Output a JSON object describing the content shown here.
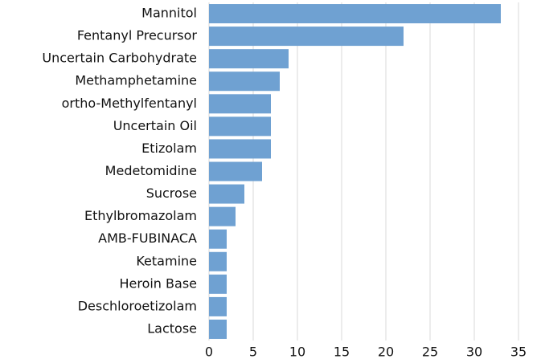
{
  "chart_data": {
    "type": "barh",
    "categories": [
      "Mannitol",
      "Fentanyl Precursor",
      "Uncertain Carbohydrate",
      "Methamphetamine",
      "ortho-Methylfentanyl",
      "Uncertain Oil",
      "Etizolam",
      "Medetomidine",
      "Sucrose",
      "Ethylbromazolam",
      "AMB-FUBINACA",
      "Ketamine",
      "Heroin Base",
      "Deschloroetizolam",
      "Lactose"
    ],
    "values": [
      33,
      22,
      9,
      8,
      7,
      7,
      7,
      6,
      4,
      3,
      2,
      2,
      2,
      2,
      2
    ],
    "color": "#6fa1d2",
    "xlim": [
      0,
      35
    ],
    "xticks": [
      0,
      5,
      10,
      15,
      20,
      25,
      30,
      35
    ],
    "grid": true
  }
}
